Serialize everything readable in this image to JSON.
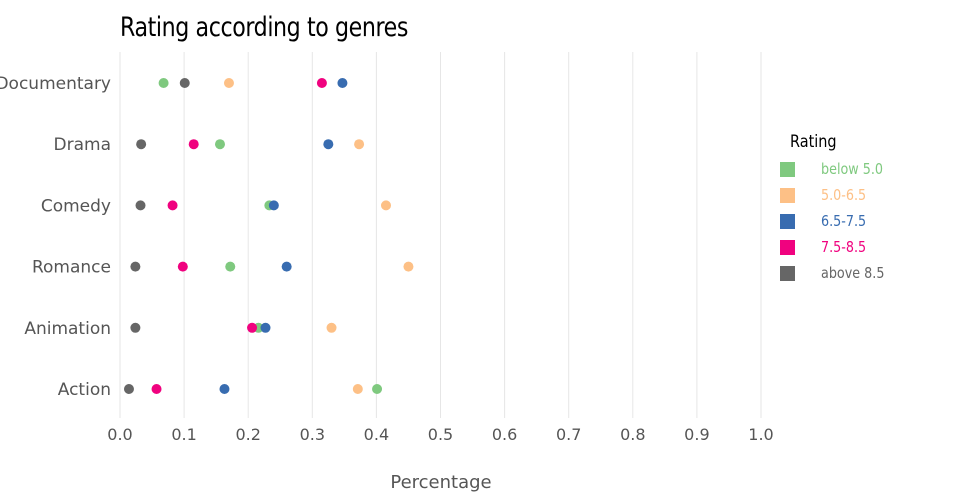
{
  "chart_data": {
    "type": "scatter",
    "title": "Rating according to genres",
    "xlabel": "Percentage",
    "ylabel": "",
    "xlim": [
      0.0,
      1.0
    ],
    "x_ticks": [
      "0.0",
      "0.1",
      "0.2",
      "0.3",
      "0.4",
      "0.5",
      "0.6",
      "0.7",
      "0.8",
      "0.9",
      "1.0"
    ],
    "categories": [
      "Documentary",
      "Drama",
      "Comedy",
      "Romance",
      "Animation",
      "Action"
    ],
    "grid": "vertical",
    "legend_title": "Rating",
    "legend_position": "right",
    "series": [
      {
        "name": "below 5.0",
        "color": "#7fc97f",
        "values": [
          0.068,
          0.156,
          0.233,
          0.172,
          0.216,
          0.401
        ]
      },
      {
        "name": "5.0-6.5",
        "color": "#fdc086",
        "values": [
          0.17,
          0.373,
          0.415,
          0.45,
          0.33,
          0.371
        ]
      },
      {
        "name": "6.5-7.5",
        "color": "#386cb0",
        "values": [
          0.347,
          0.325,
          0.24,
          0.26,
          0.227,
          0.163
        ]
      },
      {
        "name": "7.5-8.5",
        "color": "#f0027f",
        "values": [
          0.315,
          0.115,
          0.082,
          0.098,
          0.206,
          0.057
        ]
      },
      {
        "name": "above 8.5",
        "color": "#666666",
        "values": [
          0.101,
          0.033,
          0.032,
          0.024,
          0.024,
          0.014
        ]
      }
    ]
  }
}
